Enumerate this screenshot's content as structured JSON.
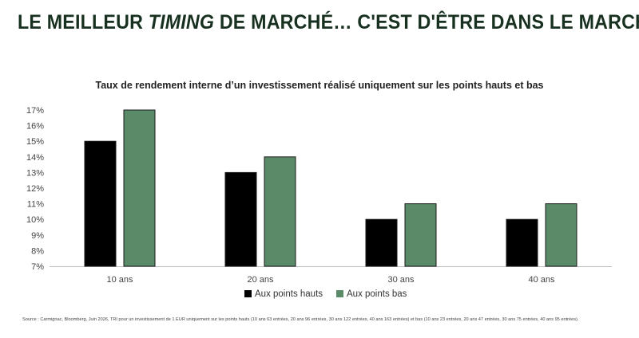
{
  "headline": {
    "part1": "LE MEILLEUR ",
    "part2": "TIMING",
    "part3": " DE MARCHÉ… C'EST D'ÊTRE DANS LE MARCHÉ"
  },
  "source_note": "Source : Carmignac, Bloomberg, Juin 2026, TRI pour un investissement de 1 EUR uniquement sur les points hauts (10 ans 63 entrées, 20 ans 96 entrées, 30 ans 122 entrées, 40 ans 163 entrées) et bas (10 ans 23 entrées, 20 ans 47 entrées, 30 ans 75 entrées, 40 ans 95 entrées).",
  "colors": {
    "headline": "#17301f",
    "series_high": "#000000",
    "series_low": "#5b8a68",
    "axis": "#bfbfbf"
  },
  "chart_data": {
    "type": "bar",
    "title": "Taux de rendement interne d’un investissement réalisé uniquement sur les points hauts et bas",
    "categories": [
      "10 ans",
      "20 ans",
      "30 ans",
      "40 ans"
    ],
    "series": [
      {
        "name": "Aux points hauts",
        "values": [
          15,
          13,
          10,
          10
        ],
        "color": "#000000"
      },
      {
        "name": "Aux points bas",
        "values": [
          17,
          14,
          11,
          11
        ],
        "color": "#5b8a68"
      }
    ],
    "ylim": [
      7,
      17
    ],
    "yticks": [
      "7%",
      "8%",
      "9%",
      "10%",
      "11%",
      "12%",
      "13%",
      "14%",
      "15%",
      "16%",
      "17%"
    ],
    "xlabel": "",
    "ylabel": "",
    "grid": false,
    "legend_position": "bottom-center"
  }
}
